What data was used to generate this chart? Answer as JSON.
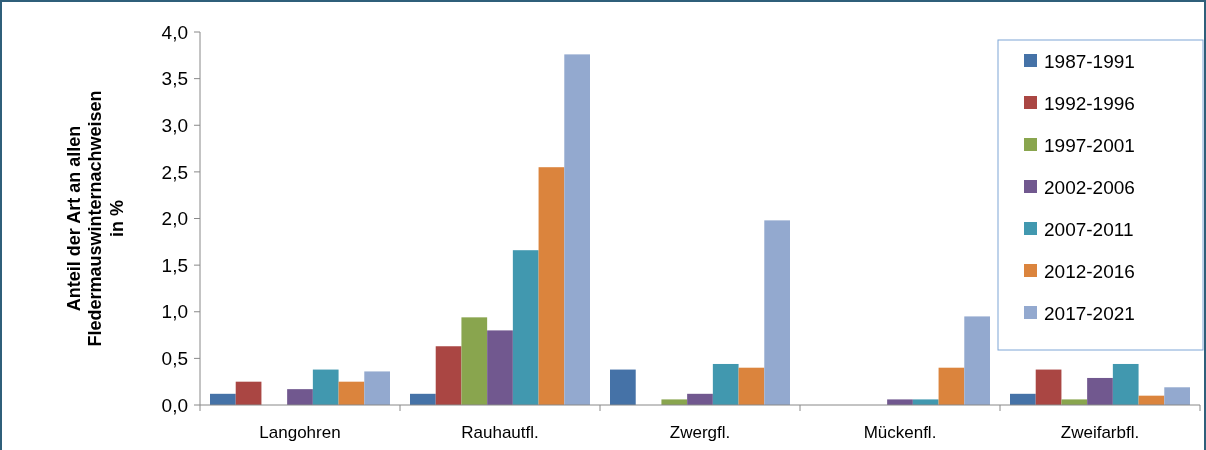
{
  "chart_data": {
    "type": "bar",
    "ylabel": "Anteil der Art an allen\nFledermauswinternachweisen\nin %",
    "categories": [
      "Langohren",
      "Rauhautfl.",
      "Zwergfl.",
      "Mückenfl.",
      "Zweifarbfl."
    ],
    "series": [
      {
        "name": "1987-1991",
        "color": "#4572a7",
        "values": [
          0.12,
          0.12,
          0.38,
          0,
          0.12
        ]
      },
      {
        "name": "1992-1996",
        "color": "#aa4643",
        "values": [
          0.25,
          0.63,
          0,
          0,
          0.38
        ]
      },
      {
        "name": "1997-2001",
        "color": "#89a54e",
        "values": [
          0,
          0.94,
          0.06,
          0,
          0.06
        ]
      },
      {
        "name": "2002-2006",
        "color": "#71588f",
        "values": [
          0.17,
          0.8,
          0.12,
          0.06,
          0.29
        ]
      },
      {
        "name": "2007-2011",
        "color": "#4198af",
        "values": [
          0.38,
          1.66,
          0.44,
          0.06,
          0.44
        ]
      },
      {
        "name": "2012-2016",
        "color": "#db843d",
        "values": [
          0.25,
          2.55,
          0.4,
          0.4,
          0.1
        ]
      },
      {
        "name": "2017-2021",
        "color": "#93a9cf",
        "values": [
          0.36,
          3.76,
          1.98,
          0.95,
          0.19
        ]
      }
    ],
    "ylim": [
      0,
      4
    ],
    "yticks": [
      {
        "value": 0,
        "label": "0,0"
      },
      {
        "value": 0.5,
        "label": "0,5"
      },
      {
        "value": 1,
        "label": "1,0"
      },
      {
        "value": 1.5,
        "label": "1,5"
      },
      {
        "value": 2,
        "label": "2,0"
      },
      {
        "value": 2.5,
        "label": "2,5"
      },
      {
        "value": 3,
        "label": "3,0"
      },
      {
        "value": 3.5,
        "label": "3,5"
      },
      {
        "value": 4,
        "label": "4,0"
      }
    ],
    "grid": false,
    "legend": "top right"
  }
}
